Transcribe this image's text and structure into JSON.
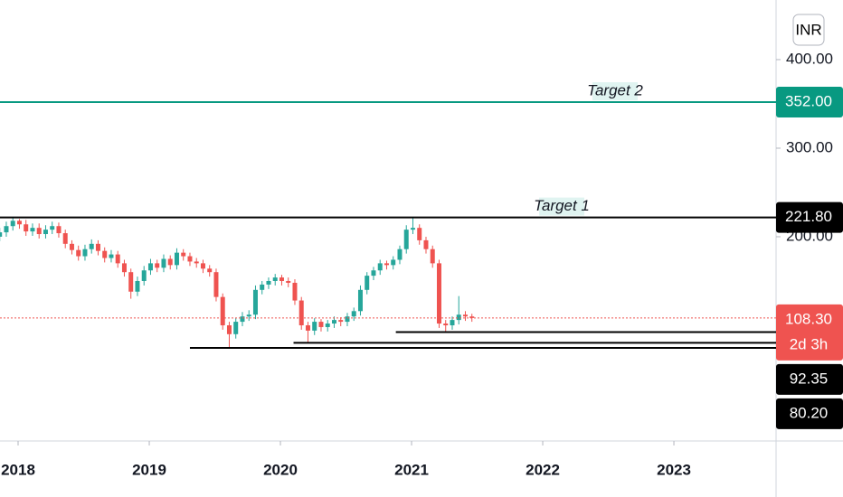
{
  "chart_data": {
    "type": "candlestick",
    "currency": "INR",
    "xlim": [
      2017.862,
      2023.779
    ],
    "ylim": [
      -30.6,
      467.3
    ],
    "xticks": [
      2018,
      2019,
      2020,
      2021,
      2022,
      2023
    ],
    "yticks": [
      {
        "value": 400,
        "label": "400.00"
      },
      {
        "value": 300,
        "label": "300.00"
      },
      {
        "value": 200,
        "label": "200.00"
      }
    ],
    "up_color": "#26a69a",
    "down_color": "#ef5350",
    "x": [
      2017.86,
      2017.91,
      2017.96,
      2018.01,
      2018.06,
      2018.11,
      2018.16,
      2018.21,
      2018.26,
      2018.31,
      2018.36,
      2018.41,
      2018.46,
      2018.51,
      2018.56,
      2018.61,
      2018.66,
      2018.71,
      2018.76,
      2018.81,
      2018.86,
      2018.91,
      2018.96,
      2019.01,
      2019.06,
      2019.11,
      2019.16,
      2019.21,
      2019.26,
      2019.31,
      2019.36,
      2019.41,
      2019.46,
      2019.51,
      2019.56,
      2019.61,
      2019.66,
      2019.71,
      2019.76,
      2019.81,
      2019.86,
      2019.91,
      2019.96,
      2020.01,
      2020.06,
      2020.11,
      2020.16,
      2020.21,
      2020.26,
      2020.31,
      2020.36,
      2020.41,
      2020.46,
      2020.51,
      2020.56,
      2020.61,
      2020.66,
      2020.71,
      2020.76,
      2020.81,
      2020.86,
      2020.91,
      2020.96,
      2021.01,
      2021.06,
      2021.11,
      2021.16,
      2021.21,
      2021.26,
      2021.31,
      2021.36,
      2021.41,
      2021.46
    ],
    "open": [
      200,
      205,
      212,
      218,
      214,
      206,
      210,
      203,
      208,
      212,
      204,
      192,
      185,
      178,
      186,
      192,
      184,
      176,
      180,
      170,
      160,
      138,
      150,
      162,
      170,
      165,
      175,
      168,
      182,
      178,
      172,
      170,
      164,
      160,
      132,
      100,
      90,
      104,
      110,
      112,
      140,
      146,
      150,
      154,
      150,
      148,
      128,
      100,
      94,
      104,
      98,
      102,
      106,
      104,
      110,
      116,
      140,
      156,
      162,
      170,
      168,
      174,
      186,
      208,
      210,
      196,
      186,
      170,
      102,
      100,
      106,
      112,
      110
    ],
    "high": [
      210,
      217,
      221.8,
      220,
      219,
      215,
      215,
      213,
      217,
      216,
      208,
      196,
      190,
      191,
      197,
      196,
      188,
      185,
      184,
      174,
      164,
      155,
      167,
      175,
      174,
      180,
      179,
      187,
      186,
      182,
      176,
      174,
      168,
      164,
      136,
      104,
      108,
      115,
      117,
      145,
      150,
      154,
      158,
      157,
      154,
      152,
      132,
      104,
      108,
      107,
      106,
      110,
      109,
      114,
      120,
      145,
      160,
      166,
      174,
      173,
      178,
      190,
      213,
      221.8,
      214,
      200,
      190,
      174,
      106,
      110,
      133,
      116,
      113
    ],
    "low": [
      195,
      200,
      207,
      209,
      201,
      201,
      198,
      198,
      203,
      199,
      187,
      180,
      173,
      173,
      181,
      179,
      171,
      171,
      165,
      155,
      130,
      133,
      145,
      157,
      160,
      160,
      163,
      163,
      173,
      167,
      165,
      159,
      155,
      127,
      95,
      74.5,
      85,
      99,
      105,
      107,
      135,
      141,
      145,
      145,
      143,
      123,
      95,
      80.2,
      89,
      93,
      93,
      97,
      99,
      99,
      105,
      111,
      135,
      151,
      157,
      163,
      163,
      169,
      181,
      203,
      191,
      181,
      165,
      97,
      92.35,
      95,
      101,
      105,
      104
    ],
    "close": [
      205,
      212,
      218,
      214,
      206,
      210,
      203,
      208,
      212,
      204,
      192,
      185,
      178,
      186,
      192,
      184,
      176,
      180,
      170,
      160,
      138,
      150,
      162,
      170,
      165,
      175,
      168,
      182,
      178,
      172,
      170,
      164,
      160,
      132,
      100,
      90,
      104,
      110,
      112,
      140,
      146,
      150,
      154,
      150,
      148,
      128,
      100,
      94,
      104,
      98,
      102,
      106,
      104,
      110,
      116,
      140,
      156,
      162,
      170,
      168,
      174,
      186,
      208,
      210,
      196,
      186,
      170,
      102,
      100,
      106,
      112,
      110,
      108.3
    ],
    "last_price": {
      "value": 108.3,
      "label": "108.30",
      "countdown": "2d 3h"
    },
    "levels": [
      {
        "name": "Target 2",
        "value": 352,
        "label": "352.00",
        "color": "#089981"
      },
      {
        "name": "Target 1",
        "value": 221.8,
        "label": "221.80",
        "color": "#000000"
      },
      {
        "value": 92.35,
        "from": 2020.88,
        "color": "#000000"
      },
      {
        "value": 80.2,
        "label": "80.20",
        "from": 2020.1,
        "color": "#000000"
      },
      {
        "value": 74.5,
        "from": 2019.31,
        "color": "#000000"
      }
    ]
  }
}
